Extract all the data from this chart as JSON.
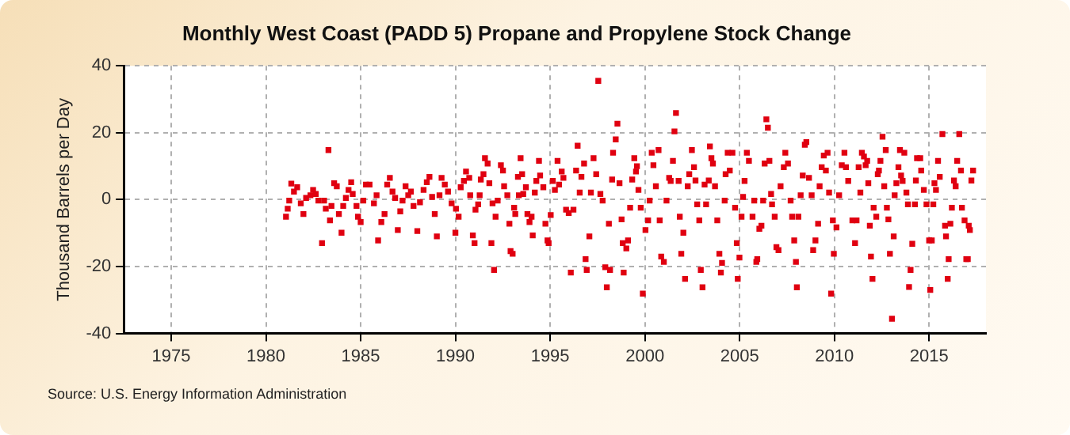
{
  "chart_data": {
    "type": "scatter",
    "title": "Monthly West Coast (PADD 5) Propane and Propylene Stock Change",
    "ylabel": "Thousand Barrels per Day",
    "annotations": [
      "Source: U.S. Energy Information Administration"
    ],
    "xlim": [
      1972.5,
      2018
    ],
    "xticks": [
      1975,
      1980,
      1985,
      1990,
      1995,
      2000,
      2005,
      2010,
      2015
    ],
    "ylim": [
      -40,
      40
    ],
    "yticks": [
      -40,
      -20,
      0,
      20,
      40
    ],
    "grid": true,
    "marker": "square",
    "series": [
      {
        "color": "#e00010",
        "x": [
          1981.06,
          1981.15,
          1981.23,
          1981.34,
          1981.48,
          1981.65,
          1981.84,
          1981.98,
          1982.12,
          1982.35,
          1982.49,
          1982.63,
          1982.77,
          1982.96,
          1983.07,
          1983.16,
          1983.3,
          1983.38,
          1983.46,
          1983.6,
          1983.74,
          1983.85,
          1983.99,
          1984.08,
          1984.22,
          1984.36,
          1984.5,
          1984.58,
          1984.78,
          1984.86,
          1985.0,
          1985.14,
          1985.28,
          1985.47,
          1985.7,
          1985.84,
          1985.92,
          1986.09,
          1986.26,
          1986.4,
          1986.54,
          1986.68,
          1986.82,
          1986.96,
          1987.09,
          1987.21,
          1987.37,
          1987.51,
          1987.65,
          1987.79,
          1987.99,
          1988.13,
          1988.32,
          1988.49,
          1988.63,
          1988.77,
          1988.91,
          1989.02,
          1989.16,
          1989.27,
          1989.44,
          1989.61,
          1989.8,
          1990.0,
          1990.03,
          1990.17,
          1990.28,
          1990.45,
          1990.56,
          1990.73,
          1990.78,
          1990.92,
          1991.01,
          1991.06,
          1991.2,
          1991.28,
          1991.34,
          1991.48,
          1991.56,
          1991.7,
          1991.79,
          1991.9,
          1991.96,
          1992.04,
          1992.12,
          1992.23,
          1992.4,
          1992.51,
          1992.57,
          1992.74,
          1992.85,
          1992.91,
          1993.02,
          1993.1,
          1993.16,
          1993.3,
          1993.35,
          1993.44,
          1993.52,
          1993.58,
          1993.72,
          1993.8,
          1993.91,
          1994.02,
          1994.08,
          1994.19,
          1994.27,
          1994.41,
          1994.47,
          1994.64,
          1994.75,
          1994.86,
          1994.92,
          1995.03,
          1995.14,
          1995.25,
          1995.39,
          1995.47,
          1995.61,
          1995.7,
          1995.84,
          1995.98,
          1996.09,
          1996.23,
          1996.37,
          1996.45,
          1996.56,
          1996.65,
          1996.79,
          1996.87,
          1996.93,
          1997.07,
          1997.15,
          1997.29,
          1997.43,
          1997.54,
          1997.65,
          1997.77,
          1997.91,
          1997.99,
          1998.1,
          1998.16,
          1998.27,
          1998.32,
          1998.46,
          1998.55,
          1998.66,
          1998.77,
          1998.83,
          1998.88,
          1999.02,
          1999.11,
          1999.22,
          1999.33,
          1999.44,
          1999.53,
          1999.58,
          1999.66,
          1999.78,
          1999.89,
          2000.03,
          2000.17,
          2000.25,
          2000.36,
          2000.45,
          2000.58,
          2000.72,
          2000.78,
          2000.86,
          2001.0,
          2001.14,
          2001.28,
          2001.36,
          2001.48,
          2001.56,
          2001.64,
          2001.78,
          2001.84,
          2001.92,
          2002.03,
          2002.12,
          2002.26,
          2002.34,
          2002.48,
          2002.59,
          2002.67,
          2002.76,
          2002.87,
          2002.95,
          2003.04,
          2003.15,
          2003.23,
          2003.37,
          2003.43,
          2003.51,
          2003.59,
          2003.7,
          2003.82,
          2003.93,
          2004.01,
          2004.07,
          2004.21,
          2004.26,
          2004.37,
          2004.48,
          2004.62,
          2004.76,
          2004.85,
          2004.9,
          2004.99,
          2005.1,
          2005.18,
          2005.26,
          2005.38,
          2005.49,
          2005.68,
          2005.77,
          2005.88,
          2005.93,
          2006.04,
          2006.15,
          2006.24,
          2006.32,
          2006.41,
          2006.49,
          2006.57,
          2006.66,
          2006.71,
          2006.85,
          2006.94,
          2007.05,
          2007.16,
          2007.33,
          2007.41,
          2007.55,
          2007.69,
          2007.77,
          2007.88,
          2007.97,
          2008.02,
          2008.1,
          2008.22,
          2008.33,
          2008.44,
          2008.52,
          2008.66,
          2008.8,
          2008.88,
          2009.0,
          2009.14,
          2009.22,
          2009.33,
          2009.44,
          2009.55,
          2009.64,
          2009.72,
          2009.83,
          2009.92,
          2009.97,
          2010.11,
          2010.25,
          2010.39,
          2010.53,
          2010.61,
          2010.73,
          2010.95,
          2011.09,
          2011.17,
          2011.28,
          2011.37,
          2011.45,
          2011.56,
          2011.65,
          2011.73,
          2011.79,
          2011.87,
          2011.93,
          2012.01,
          2012.07,
          2012.21,
          2012.29,
          2012.35,
          2012.43,
          2012.54,
          2012.63,
          2012.71,
          2012.77,
          2012.85,
          2012.93,
          2013.04,
          2013.13,
          2013.18,
          2013.27,
          2013.38,
          2013.46,
          2013.52,
          2013.6,
          2013.69,
          2013.8,
          2013.88,
          2013.94,
          2014.02,
          2014.11,
          2014.25,
          2014.3,
          2014.36,
          2014.53,
          2014.58,
          2014.72,
          2014.86,
          2015.0,
          2015.06,
          2015.14,
          2015.22,
          2015.28,
          2015.36,
          2015.47,
          2015.56,
          2015.7,
          2015.84,
          2015.89,
          2015.98,
          2016.03,
          2016.12,
          2016.2,
          2016.31,
          2016.4,
          2016.48,
          2016.59,
          2016.68,
          2016.73,
          2016.87,
          2016.96,
          2017.04,
          2017.09,
          2017.15,
          2017.23,
          2017.32
        ],
        "values": [
          -5.1,
          -2.7,
          -0.3,
          4.8,
          2.4,
          3.7,
          -1.1,
          -4.3,
          0.5,
          1.3,
          2.9,
          1.7,
          -0.3,
          -13.0,
          -0.3,
          -2.7,
          14.8,
          -6.2,
          -1.9,
          4.9,
          4.0,
          -4.3,
          -9.9,
          -1.9,
          0.5,
          2.9,
          5.2,
          1.7,
          -1.9,
          -5.1,
          -6.7,
          -0.3,
          4.5,
          4.5,
          -1.1,
          1.3,
          -12.2,
          -6.7,
          -4.3,
          4.5,
          6.5,
          2.4,
          0.5,
          -9.1,
          -3.5,
          -0.3,
          4.0,
          1.3,
          2.4,
          -1.9,
          -9.4,
          -0.8,
          2.9,
          5.2,
          6.8,
          0.8,
          -4.3,
          -11.0,
          1.3,
          6.5,
          4.5,
          2.4,
          -1.1,
          -9.9,
          -2.7,
          -5.1,
          3.7,
          5.6,
          8.4,
          6.5,
          1.3,
          -10.7,
          -13.0,
          -3.0,
          -1.4,
          1.3,
          6.0,
          7.6,
          12.4,
          10.8,
          4.9,
          -13.0,
          -1.1,
          -21.0,
          -5.1,
          -0.3,
          10.3,
          8.7,
          4.0,
          1.3,
          -7.2,
          -15.4,
          -16.2,
          -2.4,
          -4.3,
          6.8,
          1.3,
          12.4,
          7.6,
          1.7,
          3.7,
          -4.3,
          -6.7,
          -5.1,
          -10.7,
          2.1,
          5.6,
          11.6,
          7.2,
          3.7,
          -7.2,
          -12.2,
          -13.0,
          -4.6,
          5.6,
          2.9,
          11.6,
          4.5,
          8.4,
          6.5,
          -3.0,
          -4.0,
          -21.8,
          -3.0,
          8.7,
          16.1,
          2.1,
          6.8,
          10.8,
          -17.8,
          -21.0,
          -11.0,
          2.1,
          12.4,
          7.6,
          35.5,
          1.7,
          -0.3,
          -20.2,
          -26.2,
          -7.2,
          -21.0,
          6.0,
          14.0,
          18.0,
          22.7,
          4.9,
          -5.9,
          -13.0,
          -21.8,
          -14.6,
          -12.2,
          -2.4,
          6.0,
          12.4,
          8.4,
          10.0,
          2.9,
          -2.4,
          -28.1,
          -9.1,
          -6.2,
          -0.3,
          14.0,
          10.3,
          4.0,
          14.8,
          -6.2,
          -17.0,
          -18.6,
          -0.3,
          6.5,
          5.6,
          11.6,
          20.4,
          25.9,
          5.6,
          -5.1,
          -16.2,
          -9.9,
          -23.7,
          4.0,
          7.6,
          14.8,
          9.7,
          5.7,
          -1.4,
          -6.2,
          -21.0,
          -26.2,
          4.5,
          -1.4,
          5.7,
          15.9,
          12.4,
          10.8,
          4.0,
          -6.2,
          -16.2,
          -21.8,
          -18.9,
          -0.3,
          7.6,
          14.0,
          8.7,
          14.0,
          -2.4,
          -13.0,
          -23.7,
          -17.3,
          -5.1,
          0.8,
          5.6,
          14.0,
          11.6,
          -5.1,
          -0.3,
          -18.6,
          -17.8,
          -8.7,
          -7.8,
          -0.3,
          10.8,
          24.0,
          21.5,
          11.6,
          1.7,
          -1.4,
          -5.1,
          -14.2,
          -15.1,
          4.0,
          9.7,
          14.0,
          10.8,
          -0.3,
          -5.1,
          -12.2,
          -18.6,
          -26.2,
          -5.1,
          1.3,
          7.2,
          16.4,
          17.2,
          6.5,
          1.3,
          -15.1,
          -12.2,
          -7.2,
          4.0,
          9.7,
          13.2,
          8.7,
          14.0,
          2.1,
          -28.1,
          -6.2,
          -16.2,
          -8.3,
          1.3,
          10.3,
          14.0,
          9.7,
          5.6,
          -6.2,
          -13.0,
          -6.2,
          9.7,
          2.1,
          14.0,
          12.9,
          10.3,
          11.6,
          4.9,
          -7.8,
          -17.0,
          -23.7,
          -2.4,
          -5.1,
          7.6,
          8.7,
          11.6,
          18.8,
          4.0,
          14.8,
          -2.4,
          -5.9,
          -16.2,
          -35.6,
          -11.0,
          1.3,
          4.9,
          9.7,
          14.8,
          7.2,
          5.6,
          14.0,
          2.1,
          -1.4,
          -26.1,
          -21.0,
          -13.2,
          -1.4,
          5.7,
          12.4,
          12.4,
          8.7,
          2.9,
          -1.4,
          -12.2,
          -27.0,
          -12.2,
          -1.4,
          4.9,
          2.9,
          11.6,
          6.8,
          19.6,
          -7.8,
          -11.0,
          -23.7,
          -17.8,
          -7.2,
          -2.4,
          5.7,
          4.0,
          11.6,
          19.6,
          8.7,
          -2.4,
          -6.2,
          -17.8,
          -17.8,
          -7.8,
          -9.1,
          5.7,
          8.7
        ]
      }
    ]
  }
}
